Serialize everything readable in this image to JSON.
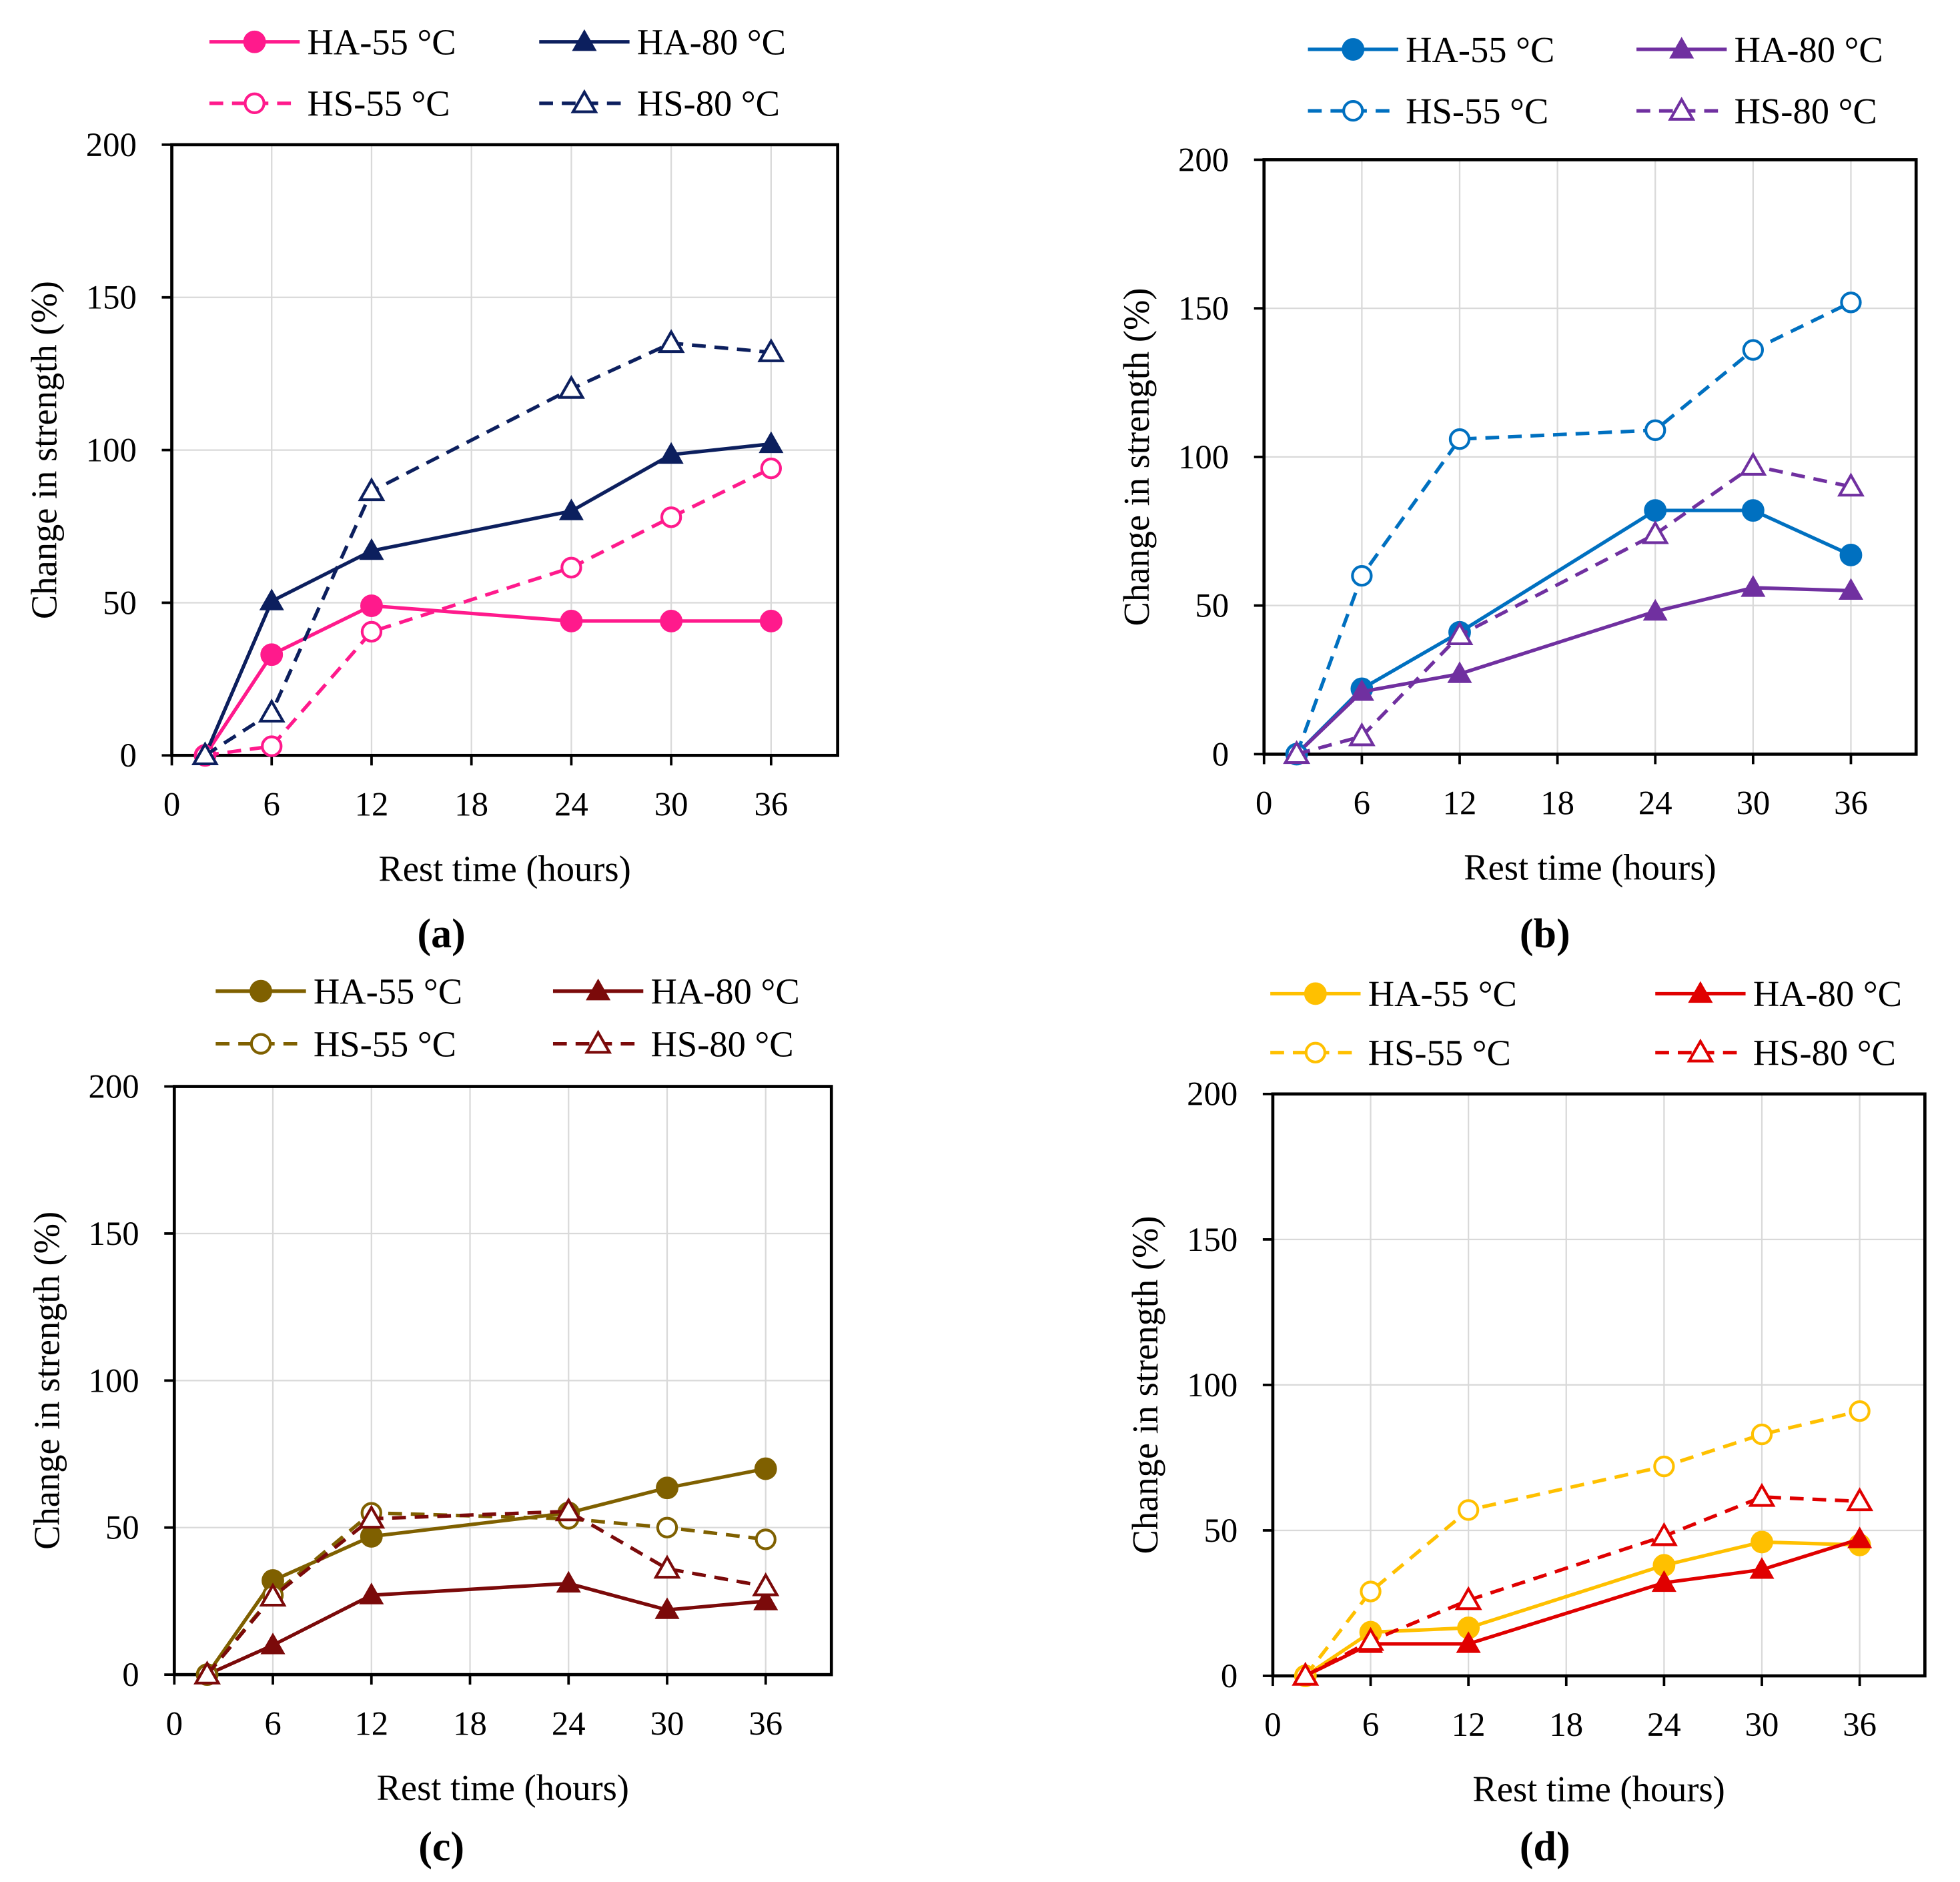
{
  "chart_data": [
    {
      "type": "line",
      "panel_label": "(a)",
      "xlabel": "Rest time (hours)",
      "ylabel": "Change in strength (%)",
      "xlim": [
        0,
        40
      ],
      "ylim": [
        0,
        200
      ],
      "xticks": [
        0,
        6,
        12,
        18,
        24,
        30,
        36
      ],
      "yticks": [
        0,
        50,
        100,
        150,
        200
      ],
      "grid": true,
      "legend_placement": "top",
      "x": [
        2,
        6,
        12,
        24,
        30,
        36
      ],
      "series": [
        {
          "name": "HA-55 °C",
          "color": "#ff1a8c",
          "dashed": false,
          "marker": "circle",
          "filled": true,
          "values": [
            0,
            33,
            49,
            44,
            44,
            44
          ]
        },
        {
          "name": "HA-80 °C",
          "color": "#0c1f5e",
          "dashed": false,
          "marker": "triangle",
          "filled": true,
          "values": [
            0,
            50.5,
            67,
            80,
            98.5,
            102
          ]
        },
        {
          "name": "HS-55 °C",
          "color": "#ff1a8c",
          "dashed": true,
          "marker": "circle",
          "filled": false,
          "values": [
            0,
            3,
            40.5,
            61.5,
            78,
            94
          ]
        },
        {
          "name": "HS-80 °C",
          "color": "#0c1f5e",
          "dashed": true,
          "marker": "triangle",
          "filled": false,
          "values": [
            0,
            14,
            86.5,
            120,
            135,
            132
          ]
        }
      ]
    },
    {
      "type": "line",
      "panel_label": "(b)",
      "xlabel": "Rest time (hours)",
      "ylabel": "Change in strength (%)",
      "xlim": [
        0,
        40
      ],
      "ylim": [
        0,
        200
      ],
      "xticks": [
        0,
        6,
        12,
        18,
        24,
        30,
        36
      ],
      "yticks": [
        0,
        50,
        100,
        150,
        200
      ],
      "grid": true,
      "legend_placement": "top",
      "x": [
        2,
        6,
        12,
        24,
        30,
        36
      ],
      "series": [
        {
          "name": "HA-55 °C",
          "color": "#0070c0",
          "dashed": false,
          "marker": "circle",
          "filled": true,
          "values": [
            0,
            22,
            41,
            82,
            82,
            67
          ]
        },
        {
          "name": "HA-80 °C",
          "color": "#7030a0",
          "dashed": false,
          "marker": "triangle",
          "filled": true,
          "values": [
            0,
            21,
            27,
            48,
            56,
            55
          ]
        },
        {
          "name": "HS-55 °C",
          "color": "#0070c0",
          "dashed": true,
          "marker": "circle",
          "filled": false,
          "values": [
            0,
            60,
            106,
            109,
            136,
            152
          ]
        },
        {
          "name": "HS-80 °C",
          "color": "#7030a0",
          "dashed": true,
          "marker": "triangle",
          "filled": false,
          "values": [
            0,
            6,
            40,
            74,
            97,
            90
          ]
        }
      ]
    },
    {
      "type": "line",
      "panel_label": "(c)",
      "xlabel": "Rest time (hours)",
      "ylabel": "Change in strength (%)",
      "xlim": [
        0,
        40
      ],
      "ylim": [
        0,
        200
      ],
      "xticks": [
        0,
        6,
        12,
        18,
        24,
        30,
        36
      ],
      "yticks": [
        0,
        50,
        100,
        150,
        200
      ],
      "grid": true,
      "legend_placement": "top",
      "x": [
        2,
        6,
        12,
        24,
        30,
        36
      ],
      "series": [
        {
          "name": "HA-55 °C",
          "color": "#7f6000",
          "dashed": false,
          "marker": "circle",
          "filled": true,
          "values": [
            0,
            32,
            47,
            55,
            63.5,
            70
          ]
        },
        {
          "name": "HA-80 °C",
          "color": "#7b0a0a",
          "dashed": false,
          "marker": "triangle",
          "filled": true,
          "values": [
            0,
            10,
            27,
            31,
            22,
            25
          ]
        },
        {
          "name": "HS-55 °C",
          "color": "#7f6000",
          "dashed": true,
          "marker": "circle",
          "filled": false,
          "values": [
            0,
            27,
            55,
            53,
            50,
            46
          ]
        },
        {
          "name": "HS-80 °C",
          "color": "#7b0a0a",
          "dashed": true,
          "marker": "triangle",
          "filled": false,
          "values": [
            0,
            26.5,
            53,
            55.5,
            36,
            30
          ]
        }
      ]
    },
    {
      "type": "line",
      "panel_label": "(d)",
      "xlabel": "Rest time (hours)",
      "ylabel": "Change in strength (%)",
      "xlim": [
        0,
        40
      ],
      "ylim": [
        0,
        200
      ],
      "xticks": [
        0,
        6,
        12,
        18,
        24,
        30,
        36
      ],
      "yticks": [
        0,
        50,
        100,
        150,
        200
      ],
      "grid": true,
      "legend_placement": "top",
      "x": [
        2,
        6,
        12,
        24,
        30,
        36
      ],
      "series": [
        {
          "name": "HA-55 °C",
          "color": "#ffc000",
          "dashed": false,
          "marker": "circle",
          "filled": true,
          "values": [
            0,
            15,
            16.5,
            38,
            46,
            45
          ]
        },
        {
          "name": "HA-80 °C",
          "color": "#e00000",
          "dashed": false,
          "marker": "triangle",
          "filled": true,
          "values": [
            0,
            11,
            11,
            32,
            36.5,
            47
          ]
        },
        {
          "name": "HS-55 °C",
          "color": "#ffc000",
          "dashed": true,
          "marker": "circle",
          "filled": false,
          "values": [
            0,
            29,
            57,
            72,
            83,
            91
          ]
        },
        {
          "name": "HS-80 °C",
          "color": "#e00000",
          "dashed": true,
          "marker": "triangle",
          "filled": false,
          "values": [
            0,
            12,
            26,
            48,
            61.5,
            60
          ]
        }
      ]
    }
  ]
}
